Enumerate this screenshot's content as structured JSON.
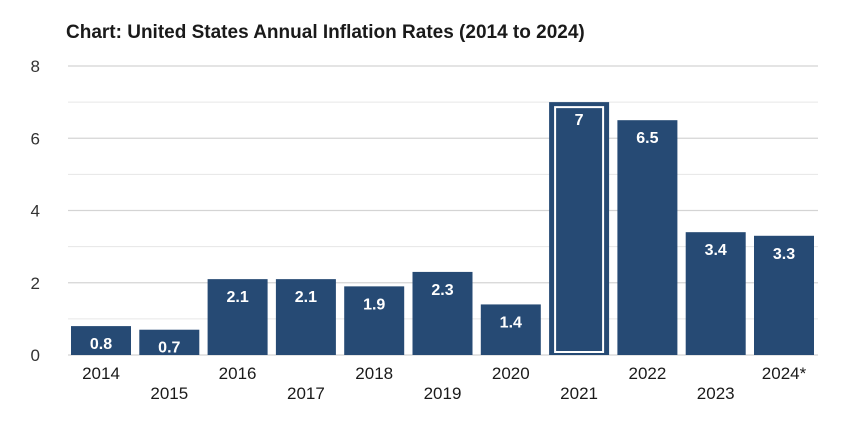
{
  "chart_data": {
    "type": "bar",
    "title": "Chart: United States Annual Inflation Rates (2014 to 2024)",
    "xlabel": "",
    "ylabel": "",
    "categories": [
      "2014",
      "2015",
      "2016",
      "2017",
      "2018",
      "2019",
      "2020",
      "2021",
      "2022",
      "2023",
      "2024*"
    ],
    "values": [
      0.8,
      0.7,
      2.1,
      2.1,
      1.9,
      2.3,
      1.4,
      7,
      6.5,
      3.4,
      3.3
    ],
    "data_labels": [
      "0.8",
      "0.7",
      "2.1",
      "2.1",
      "1.9",
      "2.3",
      "1.4",
      "7",
      "6.5",
      "3.4",
      "3.3"
    ],
    "ylim": [
      0,
      8
    ],
    "yticks": [
      0,
      2,
      4,
      6,
      8
    ],
    "grid": true,
    "legend": "none",
    "highlight_index": 7,
    "bar_color": "#264a74",
    "highlight_outline_color": "#ffffff"
  }
}
